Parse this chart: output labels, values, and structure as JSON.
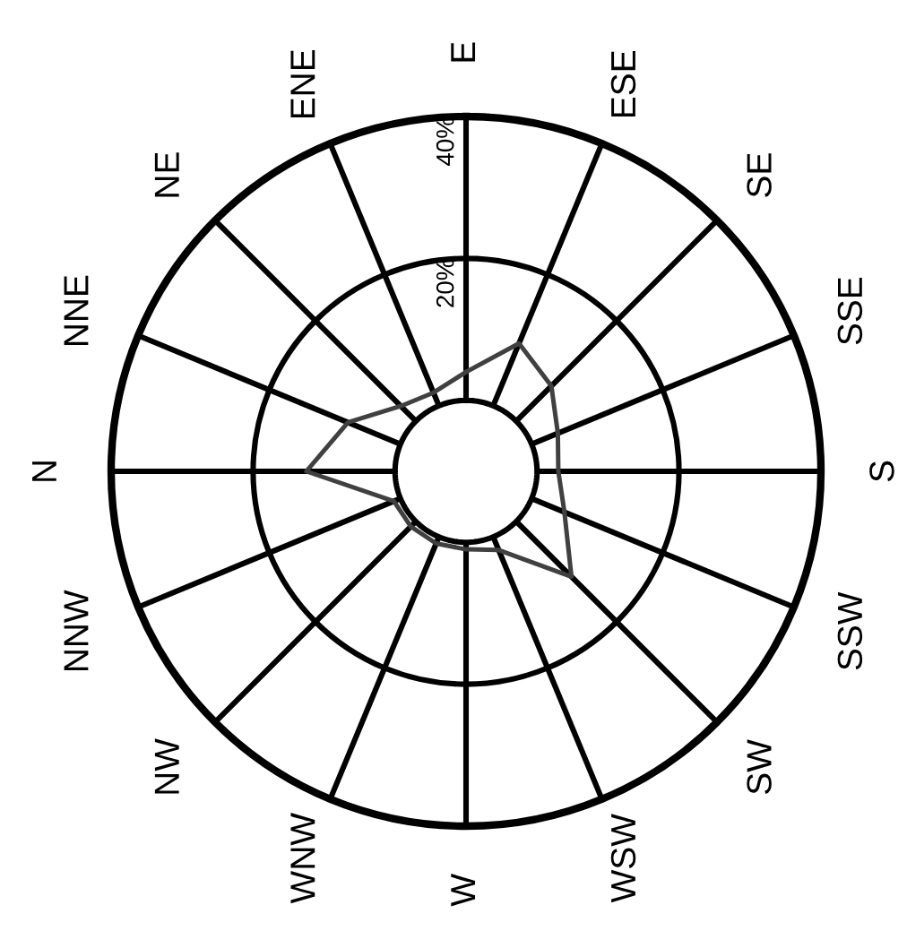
{
  "chart_data": {
    "type": "radar",
    "categories": [
      "E",
      "ESE",
      "SE",
      "SSE",
      "S",
      "SSW",
      "SW",
      "WSW",
      "W",
      "WNW",
      "NW",
      "NNW",
      "N",
      "NNE",
      "NE",
      "ENE"
    ],
    "series": [
      {
        "color": "#404040",
        "values": [
          4,
          9.5,
          7,
          4,
          3,
          5,
          11,
          2,
          1,
          1,
          1,
          1,
          12.5,
          8,
          3,
          2
        ]
      }
    ],
    "ylim": [
      -10,
      40
    ],
    "yticks": [
      {
        "value": 20,
        "label": "20%"
      },
      {
        "value": 40,
        "label": "40%"
      }
    ],
    "grid": true,
    "marker": "none",
    "line_style": "solid"
  }
}
